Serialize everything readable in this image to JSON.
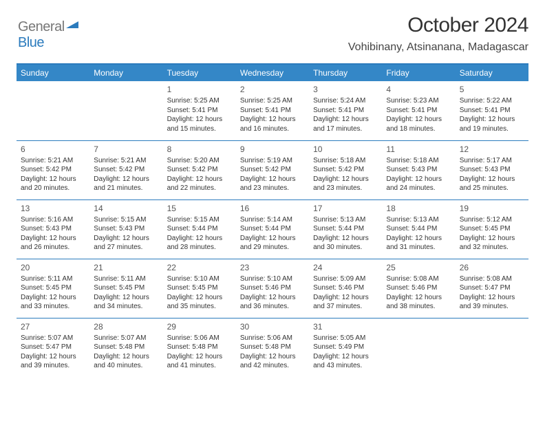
{
  "logo": {
    "grey": "General",
    "blue": "Blue"
  },
  "title": "October 2024",
  "location": "Vohibinany, Atsinanana, Madagascar",
  "colors": {
    "header_bg": "#3487c7",
    "header_text": "#ffffff",
    "rule": "#2b7bbd",
    "body_text": "#333333",
    "background": "#ffffff"
  },
  "typography": {
    "title_fontsize": 30,
    "location_fontsize": 16,
    "day_header_fontsize": 12,
    "cell_fontsize": 10,
    "daynum_fontsize": 12
  },
  "layout": {
    "columns": 7,
    "rows": 5,
    "first_weekday_index": 2,
    "days_in_month": 31
  },
  "day_headers": [
    "Sunday",
    "Monday",
    "Tuesday",
    "Wednesday",
    "Thursday",
    "Friday",
    "Saturday"
  ],
  "days": [
    {
      "n": 1,
      "sunrise": "5:25 AM",
      "sunset": "5:41 PM",
      "daylight": "12 hours and 15 minutes."
    },
    {
      "n": 2,
      "sunrise": "5:25 AM",
      "sunset": "5:41 PM",
      "daylight": "12 hours and 16 minutes."
    },
    {
      "n": 3,
      "sunrise": "5:24 AM",
      "sunset": "5:41 PM",
      "daylight": "12 hours and 17 minutes."
    },
    {
      "n": 4,
      "sunrise": "5:23 AM",
      "sunset": "5:41 PM",
      "daylight": "12 hours and 18 minutes."
    },
    {
      "n": 5,
      "sunrise": "5:22 AM",
      "sunset": "5:41 PM",
      "daylight": "12 hours and 19 minutes."
    },
    {
      "n": 6,
      "sunrise": "5:21 AM",
      "sunset": "5:42 PM",
      "daylight": "12 hours and 20 minutes."
    },
    {
      "n": 7,
      "sunrise": "5:21 AM",
      "sunset": "5:42 PM",
      "daylight": "12 hours and 21 minutes."
    },
    {
      "n": 8,
      "sunrise": "5:20 AM",
      "sunset": "5:42 PM",
      "daylight": "12 hours and 22 minutes."
    },
    {
      "n": 9,
      "sunrise": "5:19 AM",
      "sunset": "5:42 PM",
      "daylight": "12 hours and 23 minutes."
    },
    {
      "n": 10,
      "sunrise": "5:18 AM",
      "sunset": "5:42 PM",
      "daylight": "12 hours and 23 minutes."
    },
    {
      "n": 11,
      "sunrise": "5:18 AM",
      "sunset": "5:43 PM",
      "daylight": "12 hours and 24 minutes."
    },
    {
      "n": 12,
      "sunrise": "5:17 AM",
      "sunset": "5:43 PM",
      "daylight": "12 hours and 25 minutes."
    },
    {
      "n": 13,
      "sunrise": "5:16 AM",
      "sunset": "5:43 PM",
      "daylight": "12 hours and 26 minutes."
    },
    {
      "n": 14,
      "sunrise": "5:15 AM",
      "sunset": "5:43 PM",
      "daylight": "12 hours and 27 minutes."
    },
    {
      "n": 15,
      "sunrise": "5:15 AM",
      "sunset": "5:44 PM",
      "daylight": "12 hours and 28 minutes."
    },
    {
      "n": 16,
      "sunrise": "5:14 AM",
      "sunset": "5:44 PM",
      "daylight": "12 hours and 29 minutes."
    },
    {
      "n": 17,
      "sunrise": "5:13 AM",
      "sunset": "5:44 PM",
      "daylight": "12 hours and 30 minutes."
    },
    {
      "n": 18,
      "sunrise": "5:13 AM",
      "sunset": "5:44 PM",
      "daylight": "12 hours and 31 minutes."
    },
    {
      "n": 19,
      "sunrise": "5:12 AM",
      "sunset": "5:45 PM",
      "daylight": "12 hours and 32 minutes."
    },
    {
      "n": 20,
      "sunrise": "5:11 AM",
      "sunset": "5:45 PM",
      "daylight": "12 hours and 33 minutes."
    },
    {
      "n": 21,
      "sunrise": "5:11 AM",
      "sunset": "5:45 PM",
      "daylight": "12 hours and 34 minutes."
    },
    {
      "n": 22,
      "sunrise": "5:10 AM",
      "sunset": "5:45 PM",
      "daylight": "12 hours and 35 minutes."
    },
    {
      "n": 23,
      "sunrise": "5:10 AM",
      "sunset": "5:46 PM",
      "daylight": "12 hours and 36 minutes."
    },
    {
      "n": 24,
      "sunrise": "5:09 AM",
      "sunset": "5:46 PM",
      "daylight": "12 hours and 37 minutes."
    },
    {
      "n": 25,
      "sunrise": "5:08 AM",
      "sunset": "5:46 PM",
      "daylight": "12 hours and 38 minutes."
    },
    {
      "n": 26,
      "sunrise": "5:08 AM",
      "sunset": "5:47 PM",
      "daylight": "12 hours and 39 minutes."
    },
    {
      "n": 27,
      "sunrise": "5:07 AM",
      "sunset": "5:47 PM",
      "daylight": "12 hours and 39 minutes."
    },
    {
      "n": 28,
      "sunrise": "5:07 AM",
      "sunset": "5:48 PM",
      "daylight": "12 hours and 40 minutes."
    },
    {
      "n": 29,
      "sunrise": "5:06 AM",
      "sunset": "5:48 PM",
      "daylight": "12 hours and 41 minutes."
    },
    {
      "n": 30,
      "sunrise": "5:06 AM",
      "sunset": "5:48 PM",
      "daylight": "12 hours and 42 minutes."
    },
    {
      "n": 31,
      "sunrise": "5:05 AM",
      "sunset": "5:49 PM",
      "daylight": "12 hours and 43 minutes."
    }
  ],
  "labels": {
    "sunrise": "Sunrise:",
    "sunset": "Sunset:",
    "daylight": "Daylight:"
  }
}
